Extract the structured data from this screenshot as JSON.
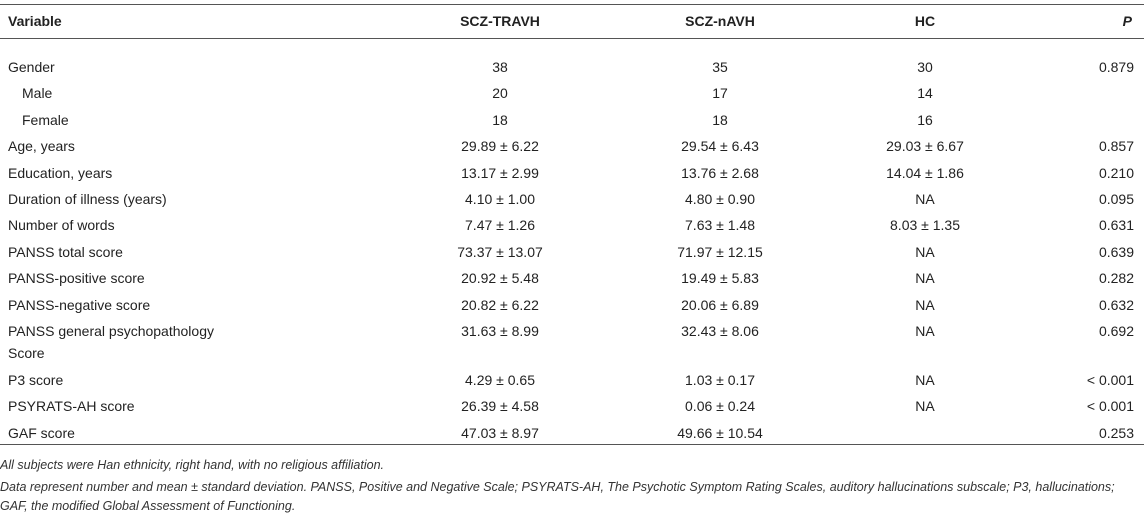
{
  "table": {
    "header": [
      "Variable",
      "SCZ-TRAVH",
      "SCZ-nAVH",
      "HC",
      "P"
    ],
    "rows": [
      {
        "cells": [
          "Gender",
          "38",
          "35",
          "30",
          "0.879"
        ]
      },
      {
        "cells": [
          "Male",
          "20",
          "17",
          "14",
          null
        ],
        "indent": true
      },
      {
        "cells": [
          "Female",
          "18",
          "18",
          "16",
          null
        ],
        "indent": true
      },
      {
        "cells": [
          "Age, years",
          "29.89 ± 6.22",
          "29.54 ± 6.43",
          "29.03 ± 6.67",
          "0.857"
        ]
      },
      {
        "cells": [
          "Education, years",
          "13.17 ± 2.99",
          "13.76 ± 2.68",
          "14.04 ± 1.86",
          "0.210"
        ]
      },
      {
        "cells": [
          "Duration of illness (years)",
          "4.10 ± 1.00",
          "4.80 ± 0.90",
          "NA",
          "0.095"
        ]
      },
      {
        "cells": [
          "Number of words",
          "7.47 ± 1.26",
          "7.63 ± 1.48",
          "8.03 ± 1.35",
          "0.631"
        ]
      },
      {
        "cells": [
          "PANSS total score",
          "73.37 ± 13.07",
          "71.97 ± 12.15",
          "NA",
          "0.639"
        ]
      },
      {
        "cells": [
          "PANSS-positive score",
          "20.92 ± 5.48",
          "19.49 ± 5.83",
          "NA",
          "0.282"
        ]
      },
      {
        "cells": [
          "PANSS-negative score",
          "20.82 ± 6.22",
          "20.06 ± 6.89",
          "NA",
          "0.632"
        ]
      },
      {
        "cells": [
          "PANSS general psychopathology Score",
          "31.63 ± 8.99",
          "32.43 ± 8.06",
          "NA",
          "0.692"
        ]
      },
      {
        "cells": [
          "P3 score",
          "4.29 ± 0.65",
          "1.03 ± 0.17",
          "NA",
          "< 0.001"
        ]
      },
      {
        "cells": [
          "PSYRATS-AH score",
          "26.39 ± 4.58",
          "0.06 ± 0.24",
          "NA",
          "< 0.001"
        ]
      },
      {
        "cells": [
          "GAF score",
          "47.03 ± 8.97",
          "49.66 ± 10.54",
          null,
          "0.253"
        ]
      }
    ]
  },
  "footnotes": [
    "All subjects were Han ethnicity, right hand, with no religious affiliation.",
    "Data represent number and mean ± standard deviation. PANSS, Positive and Negative Scale; PSYRATS-AH, The Psychotic Symptom Rating Scales, auditory hallucinations subscale; P3, hallucinations; GAF, the modified Global Assessment of Functioning."
  ]
}
